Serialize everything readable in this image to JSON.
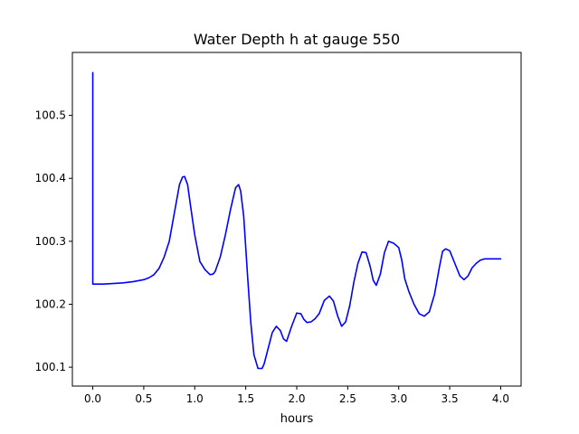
{
  "chart_data": {
    "type": "line",
    "title": "Water Depth h at gauge 550",
    "xlabel": "hours",
    "ylabel": "",
    "xlim": [
      -0.2,
      4.2
    ],
    "ylim": [
      100.07,
      100.6
    ],
    "xticks": [
      0.0,
      0.5,
      1.0,
      1.5,
      2.0,
      2.5,
      3.0,
      3.5,
      4.0
    ],
    "xtick_labels": [
      "0.0",
      "0.5",
      "1.0",
      "1.5",
      "2.0",
      "2.5",
      "3.0",
      "3.5",
      "4.0"
    ],
    "yticks": [
      100.1,
      100.2,
      100.3,
      100.4,
      100.5
    ],
    "ytick_labels": [
      "100.1",
      "100.2",
      "100.3",
      "100.4",
      "100.5"
    ],
    "grid": false,
    "legend": "none",
    "series": [
      {
        "color": "#0000ff",
        "x": [
          0.0,
          0.0,
          0.0,
          0.1,
          0.2,
          0.3,
          0.4,
          0.5,
          0.55,
          0.6,
          0.65,
          0.7,
          0.75,
          0.8,
          0.85,
          0.88,
          0.9,
          0.93,
          0.96,
          1.0,
          1.05,
          1.1,
          1.15,
          1.18,
          1.2,
          1.25,
          1.3,
          1.35,
          1.4,
          1.43,
          1.45,
          1.48,
          1.52,
          1.55,
          1.58,
          1.62,
          1.66,
          1.68,
          1.72,
          1.76,
          1.8,
          1.84,
          1.87,
          1.9,
          1.95,
          2.0,
          2.04,
          2.07,
          2.1,
          2.14,
          2.18,
          2.22,
          2.27,
          2.32,
          2.36,
          2.4,
          2.44,
          2.48,
          2.52,
          2.56,
          2.6,
          2.64,
          2.68,
          2.72,
          2.75,
          2.78,
          2.82,
          2.86,
          2.9,
          2.95,
          3.0,
          3.03,
          3.06,
          3.1,
          3.15,
          3.2,
          3.25,
          3.3,
          3.35,
          3.4,
          3.43,
          3.46,
          3.5,
          3.55,
          3.6,
          3.64,
          3.68,
          3.72,
          3.76,
          3.8,
          3.84,
          3.88,
          3.92,
          3.96,
          4.0
        ],
        "y": [
          100.568,
          100.232,
          100.232,
          100.232,
          100.233,
          100.234,
          100.236,
          100.239,
          100.242,
          100.247,
          100.257,
          100.275,
          100.3,
          100.345,
          100.39,
          100.402,
          100.403,
          100.39,
          100.355,
          100.31,
          100.268,
          100.255,
          100.247,
          100.248,
          100.252,
          100.275,
          100.31,
          100.35,
          100.385,
          100.39,
          100.38,
          100.34,
          100.24,
          100.17,
          100.12,
          100.098,
          100.098,
          100.105,
          100.13,
          100.155,
          100.165,
          100.158,
          100.145,
          100.141,
          100.165,
          100.186,
          100.185,
          100.176,
          100.171,
          100.172,
          100.177,
          100.185,
          100.206,
          100.213,
          100.205,
          100.182,
          100.165,
          100.172,
          100.198,
          100.235,
          100.265,
          100.283,
          100.282,
          100.26,
          100.238,
          100.23,
          100.248,
          100.282,
          100.3,
          100.297,
          100.29,
          100.27,
          100.24,
          100.22,
          100.2,
          100.185,
          100.181,
          100.188,
          100.215,
          100.26,
          100.284,
          100.288,
          100.285,
          100.265,
          100.245,
          100.239,
          100.245,
          100.258,
          100.265,
          100.27,
          100.272,
          100.272,
          100.272,
          100.272,
          100.272
        ]
      }
    ]
  }
}
